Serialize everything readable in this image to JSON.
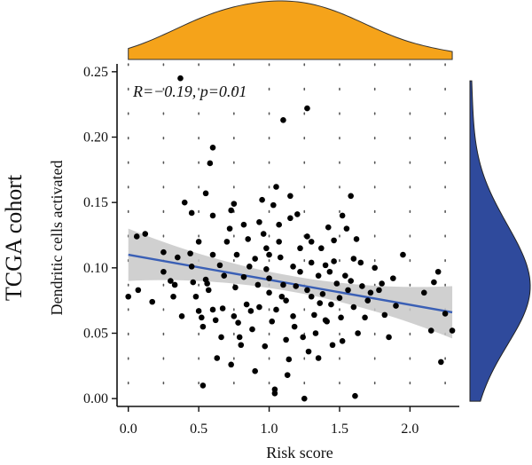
{
  "side_label": "TCGA cohort",
  "chart_data": {
    "type": "scatter",
    "xlabel": "Risk score",
    "ylabel": "Dendritic cells activated",
    "xlim": [
      -0.08,
      2.35
    ],
    "ylim": [
      -0.006,
      0.256
    ],
    "x_ticks": [
      0.0,
      0.5,
      1.0,
      1.5,
      2.0
    ],
    "x_tick_labels": [
      "0.0",
      "0.5",
      "1.0",
      "1.5",
      "2.0"
    ],
    "y_ticks": [
      0.0,
      0.05,
      0.1,
      0.15,
      0.2,
      0.25
    ],
    "y_tick_labels": [
      "0.00",
      "0.05",
      "0.10",
      "0.15",
      "0.20",
      "0.25"
    ],
    "grid": "dotted",
    "annotation": "R=−0.19, p=0.01",
    "regression": {
      "x": [
        0.0,
        2.3
      ],
      "y": [
        0.11,
        0.066
      ],
      "ci_halfwidth_end": 0.02,
      "ci_halfwidth_mid": 0.006
    },
    "colors": {
      "points": "#000000",
      "regression_line": "#3a5fb5",
      "ci_band": "#c8c8c8",
      "top_density": "#f5a31a",
      "right_density": "#2f4a9c"
    },
    "points": [
      [
        0.06,
        0.124
      ],
      [
        0.12,
        0.126
      ],
      [
        0.0,
        0.078
      ],
      [
        0.07,
        0.083
      ],
      [
        0.17,
        0.074
      ],
      [
        0.25,
        0.112
      ],
      [
        0.25,
        0.097
      ],
      [
        0.3,
        0.09
      ],
      [
        0.32,
        0.078
      ],
      [
        0.33,
        0.087
      ],
      [
        0.35,
        0.108
      ],
      [
        0.37,
        0.245
      ],
      [
        0.38,
        0.063
      ],
      [
        0.4,
        0.15
      ],
      [
        0.44,
        0.111
      ],
      [
        0.45,
        0.142
      ],
      [
        0.45,
        0.101
      ],
      [
        0.46,
        0.089
      ],
      [
        0.48,
        0.078
      ],
      [
        0.5,
        0.12
      ],
      [
        0.5,
        0.067
      ],
      [
        0.52,
        0.062
      ],
      [
        0.53,
        0.055
      ],
      [
        0.53,
        0.01
      ],
      [
        0.55,
        0.157
      ],
      [
        0.55,
        0.091
      ],
      [
        0.57,
        0.083
      ],
      [
        0.58,
        0.18
      ],
      [
        0.6,
        0.192
      ],
      [
        0.6,
        0.14
      ],
      [
        0.6,
        0.11
      ],
      [
        0.6,
        0.068
      ],
      [
        0.62,
        0.06
      ],
      [
        0.63,
        0.031
      ],
      [
        0.65,
        0.102
      ],
      [
        0.67,
        0.069
      ],
      [
        0.68,
        0.094
      ],
      [
        0.7,
        0.12
      ],
      [
        0.72,
        0.13
      ],
      [
        0.73,
        0.144
      ],
      [
        0.75,
        0.149
      ],
      [
        0.75,
        0.063
      ],
      [
        0.76,
        0.085
      ],
      [
        0.77,
        0.11
      ],
      [
        0.78,
        0.058
      ],
      [
        0.79,
        0.047
      ],
      [
        0.8,
        0.041
      ],
      [
        0.82,
        0.133
      ],
      [
        0.82,
        0.093
      ],
      [
        0.84,
        0.072
      ],
      [
        0.85,
        0.122
      ],
      [
        0.87,
        0.067
      ],
      [
        0.88,
        0.053
      ],
      [
        0.9,
        0.107
      ],
      [
        0.9,
        0.021
      ],
      [
        0.92,
        0.087
      ],
      [
        0.93,
        0.135
      ],
      [
        0.95,
        0.152
      ],
      [
        0.96,
        0.126
      ],
      [
        0.98,
        0.115
      ],
      [
        0.98,
        0.099
      ],
      [
        1.0,
        0.11
      ],
      [
        1.0,
        0.092
      ],
      [
        1.0,
        0.081
      ],
      [
        1.02,
        0.059
      ],
      [
        1.04,
        0.007
      ],
      [
        1.04,
        0.004
      ],
      [
        1.05,
        0.162
      ],
      [
        1.07,
        0.133
      ],
      [
        1.07,
        0.12
      ],
      [
        1.08,
        0.108
      ],
      [
        1.1,
        0.213
      ],
      [
        1.1,
        0.087
      ],
      [
        1.12,
        0.075
      ],
      [
        1.12,
        0.045
      ],
      [
        1.14,
        0.03
      ],
      [
        1.15,
        0.155
      ],
      [
        1.15,
        0.138
      ],
      [
        1.17,
        0.101
      ],
      [
        1.17,
        0.063
      ],
      [
        1.18,
        0.055
      ],
      [
        1.2,
        0.141
      ],
      [
        1.22,
        0.115
      ],
      [
        1.22,
        0.097
      ],
      [
        1.24,
        0.047
      ],
      [
        1.25,
        0.0
      ],
      [
        1.27,
        0.222
      ],
      [
        1.27,
        0.124
      ],
      [
        1.27,
        0.083
      ],
      [
        1.3,
        0.12
      ],
      [
        1.3,
        0.104
      ],
      [
        1.3,
        0.078
      ],
      [
        1.32,
        0.064
      ],
      [
        1.33,
        0.05
      ],
      [
        1.35,
        0.094
      ],
      [
        1.35,
        0.031
      ],
      [
        1.37,
        0.115
      ],
      [
        1.38,
        0.08
      ],
      [
        1.4,
        0.102
      ],
      [
        1.4,
        0.06
      ],
      [
        1.42,
        0.131
      ],
      [
        1.43,
        0.097
      ],
      [
        1.44,
        0.072
      ],
      [
        1.45,
        0.041
      ],
      [
        1.46,
        0.105
      ],
      [
        1.48,
        0.088
      ],
      [
        1.5,
        0.077
      ],
      [
        1.51,
        0.062
      ],
      [
        1.52,
        0.14
      ],
      [
        1.52,
        0.044
      ],
      [
        1.54,
        0.094
      ],
      [
        1.55,
        0.13
      ],
      [
        1.56,
        0.083
      ],
      [
        1.58,
        0.155
      ],
      [
        1.6,
        0.107
      ],
      [
        1.6,
        0.07
      ],
      [
        1.62,
        0.122
      ],
      [
        1.63,
        0.05
      ],
      [
        1.65,
        0.104
      ],
      [
        1.66,
        0.086
      ],
      [
        1.68,
        0.062
      ],
      [
        1.72,
        0.081
      ],
      [
        1.75,
        0.1
      ],
      [
        1.78,
        0.083
      ],
      [
        1.8,
        0.088
      ],
      [
        1.82,
        0.064
      ],
      [
        1.85,
        0.047
      ],
      [
        1.88,
        0.092
      ],
      [
        1.9,
        0.071
      ],
      [
        1.95,
        0.11
      ],
      [
        2.1,
        0.081
      ],
      [
        2.15,
        0.052
      ],
      [
        2.2,
        0.097
      ],
      [
        2.22,
        0.028
      ],
      [
        2.25,
        0.065
      ],
      [
        2.3,
        0.052
      ],
      [
        0.97,
        0.04
      ],
      [
        1.13,
        0.018
      ],
      [
        1.36,
        0.073
      ],
      [
        1.61,
        0.002
      ],
      [
        0.73,
        0.026
      ],
      [
        1.05,
        0.068
      ],
      [
        1.19,
        0.086
      ],
      [
        0.86,
        0.101
      ],
      [
        1.46,
        0.121
      ],
      [
        1.58,
        0.09
      ],
      [
        0.66,
        0.047
      ],
      [
        1.28,
        0.036
      ],
      [
        1.03,
        0.148
      ],
      [
        0.93,
        0.07
      ],
      [
        1.41,
        0.059
      ],
      [
        0.56,
        0.088
      ],
      [
        1.7,
        0.075
      ],
      [
        2.17,
        0.089
      ],
      [
        1.09,
        0.078
      ]
    ]
  }
}
